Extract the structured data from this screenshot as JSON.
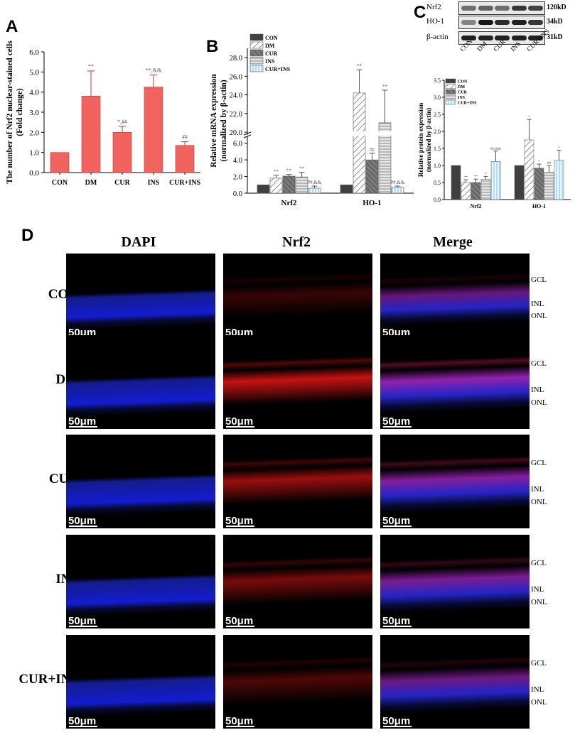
{
  "panels": {
    "A": "A",
    "B": "B",
    "C": "C",
    "D": "D"
  },
  "colors": {
    "panelA": "#f1635f",
    "dark": "#3f3f3f",
    "cur": "#7a7a7a",
    "ins": "#bdbdbd",
    "curins": "#cfe8f6"
  },
  "chart_data": [
    {
      "id": "A",
      "type": "bar",
      "title": "",
      "ylabel_line1": "The number of Nrf2 nuclear-stained cells",
      "ylabel_line2": "(Fold change)",
      "categories": [
        "CON",
        "DM",
        "CUR",
        "INS",
        "CUR+INS"
      ],
      "values": [
        1.0,
        3.8,
        2.0,
        4.25,
        1.35
      ],
      "errors": [
        0,
        1.25,
        0.3,
        0.6,
        0.18
      ],
      "annotations": [
        "",
        "**",
        "*,##",
        "**,&&",
        "##"
      ],
      "ylim": [
        0,
        6.0
      ],
      "yticks": [
        "0.0",
        "1.0",
        "2.0",
        "3.0",
        "4.0",
        "5.0",
        "6.0"
      ],
      "ytick_values": [
        0,
        1,
        2,
        3,
        4,
        5,
        6
      ]
    },
    {
      "id": "B",
      "type": "bar",
      "ylabel_line1": "Relative mRNA expression",
      "ylabel_line2": "(normalized by β-actin)",
      "groups": [
        "Nrf2",
        "HO-1"
      ],
      "legend": [
        "CON",
        "DM",
        "CUR",
        "INS",
        "CUR+INS"
      ],
      "series": [
        {
          "name": "CON",
          "values": [
            1.0,
            1.0
          ],
          "errors": [
            0,
            0
          ],
          "annotations": [
            "",
            ""
          ]
        },
        {
          "name": "DM",
          "values": [
            1.8,
            24.2
          ],
          "errors": [
            0.35,
            2.5
          ],
          "annotations": [
            "**",
            "**"
          ]
        },
        {
          "name": "CUR",
          "values": [
            2.05,
            4.0
          ],
          "errors": [
            0.2,
            0.8
          ],
          "annotations": [
            "**",
            "##"
          ]
        },
        {
          "name": "INS",
          "values": [
            1.95,
            21.0
          ],
          "errors": [
            0.55,
            3.5
          ],
          "annotations": [
            "**",
            "**"
          ]
        },
        {
          "name": "CUR+INS",
          "values": [
            0.6,
            0.7
          ],
          "errors": [
            0.25,
            0.15
          ],
          "annotations": [
            "##,&&",
            "##,&&"
          ]
        }
      ],
      "yticks": [
        "0.0",
        "2.0",
        "4.0",
        "6.0",
        "20.0",
        "22.0",
        "24.0",
        "26.0",
        "28.0"
      ],
      "axis_break": [
        7,
        20
      ],
      "ylim": [
        0,
        29
      ]
    },
    {
      "id": "C",
      "type": "bar",
      "ylabel_line1": "Relative protein expression",
      "ylabel_line2": "(normalized by β-actin)",
      "groups": [
        "Nrf2",
        "HO-1"
      ],
      "legend": [
        "CON",
        "DM",
        "CUR",
        "INS",
        "CUR+INS"
      ],
      "series": [
        {
          "name": "CON",
          "values": [
            1.0,
            1.0
          ],
          "errors": [
            0,
            0
          ],
          "annotations": [
            "",
            ""
          ]
        },
        {
          "name": "DM",
          "values": [
            0.5,
            1.75
          ],
          "errors": [
            0.08,
            0.6
          ],
          "annotations": [
            "**",
            "*"
          ]
        },
        {
          "name": "CUR",
          "values": [
            0.5,
            0.92
          ],
          "errors": [
            0.1,
            0.12
          ],
          "annotations": [
            "**",
            "*"
          ]
        },
        {
          "name": "INS",
          "values": [
            0.6,
            0.8
          ],
          "errors": [
            0.08,
            0.2
          ],
          "annotations": [
            "*",
            "##"
          ]
        },
        {
          "name": "CUR+INS",
          "values": [
            1.12,
            1.15
          ],
          "errors": [
            0.3,
            0.3
          ],
          "annotations": [
            "##,&&",
            "*"
          ]
        }
      ],
      "yticks": [
        "0.0",
        "0.5",
        "1.0",
        "1.5",
        "2.0",
        "2.5",
        "3.0",
        "3.5"
      ],
      "ytick_values": [
        0,
        0.5,
        1,
        1.5,
        2,
        2.5,
        3,
        3.5
      ],
      "ylim": [
        0,
        3.5
      ]
    }
  ],
  "blot": {
    "proteins": [
      {
        "name": "Nrf2",
        "size": "120kD"
      },
      {
        "name": "HO-1",
        "size": "34kD"
      },
      {
        "name": "β-actin",
        "size": "31kD"
      }
    ],
    "lanes": [
      "CON",
      "DM",
      "CUR",
      "INS",
      "CUR+INS"
    ]
  },
  "micrographs": {
    "columns": [
      "DAPI",
      "Nrf2",
      "Merge"
    ],
    "rows": [
      {
        "label": "CON",
        "layers": [
          "GCL",
          "INL",
          "ONL"
        ]
      },
      {
        "label": "DM",
        "layers": [
          "GCL",
          "INL",
          "ONL"
        ]
      },
      {
        "label": "CUR",
        "layers": [
          "GCL",
          "INL",
          "ONL"
        ]
      },
      {
        "label": "INS",
        "layers": [
          "GCL",
          "INL",
          "ONL"
        ]
      },
      {
        "label": "CUR+INS",
        "layers": [
          "GCL",
          "INL",
          "ONL"
        ]
      }
    ],
    "scalebar": "50μm"
  }
}
